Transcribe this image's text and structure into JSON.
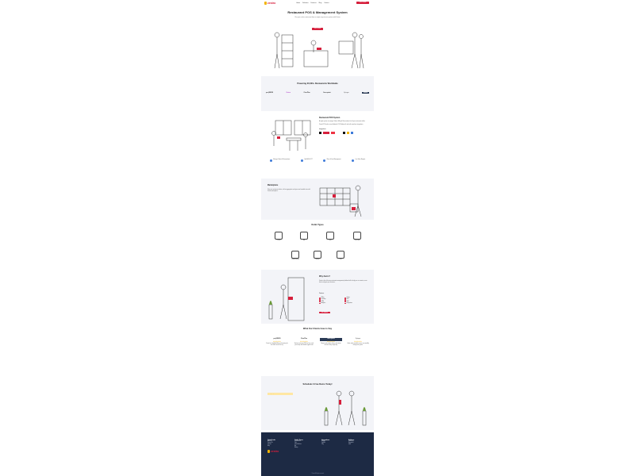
{
  "brand": {
    "name": "zestro"
  },
  "header": {
    "nav": [
      "Home",
      "Solutions",
      "Features",
      "Blog",
      "Contact",
      "Blog"
    ],
    "cta": "Get a Demo"
  },
  "hero": {
    "title": "Restaurant POS & Management System",
    "subtitle": "Run your entire restaurant from a single easy-to-use system with Zestro",
    "cta": "Get a Demo"
  },
  "partners": {
    "title": "Powering 20,000+ Restaurants Worldwide",
    "logos": [
      "pos|NEWS",
      "Zestro",
      "ClearPlan",
      "Greenpoint",
      "flyingm",
      "brand"
    ]
  },
  "pos_section": {
    "title": "Restaurant POS System",
    "p1": "A single system to manage Orders, Billing & Reservations for all your restaurant outlets.",
    "p2": "Zestro POS works across Android, iOS, Windows & web with seamless integrations.",
    "integrations_label": "Integrations",
    "features": [
      "Manage Orders & Reservations",
      "Split Bill & KOT",
      "Menu & Item Management",
      "Live Sales Reports"
    ],
    "cta": "Learn More"
  },
  "marketplace": {
    "title": "Marketplace",
    "text": "Take your restaurant online, sell on aggregators and your own branded store with Zestro marketplace."
  },
  "outlet_types": {
    "title": "Outlet Types",
    "items": [
      "Casual",
      "Bar",
      "QSR",
      "Fine Dine",
      "Cloud Kitchen",
      "Bakery",
      "Cafe"
    ]
  },
  "why": {
    "title": "Why Zestro?",
    "text": "Zestro is the all-in-one restaurant management platform built to help you run smarter, serve faster and grow your business.",
    "features_label": "Features",
    "list_left": [
      "Billing",
      "Inventory",
      "CRM",
      "Analytics"
    ],
    "list_right": [
      "Orders",
      "KDS",
      "Staff",
      "Integrations"
    ],
    "cta": "Get Started"
  },
  "reviews": {
    "title": "What Our Clients have to Say",
    "items": [
      {
        "logo": "pos|NEWS",
        "stars": "★★★★★",
        "text": "Zestro has simplified billing and inventory for our outlets across the city."
      },
      {
        "logo": "ClearPlan",
        "stars": "★★★★★",
        "text": "The best restaurant POS we have used. Quick setup and reliable support team."
      },
      {
        "logo": "Greenpoint",
        "stars": "★★★★★",
        "text": "Reports and analytics help us take better decisions every single day."
      },
      {
        "logo": "flyingm",
        "stars": "★★★★★",
        "text": "Online orders and table service run smoothly through one system."
      }
    ]
  },
  "schedule": {
    "title": "Schedule A Free Demo Today!",
    "input_placeholder": "Enter your phone number"
  },
  "footer": {
    "columns": [
      {
        "heading": "Quick Links",
        "items": [
          "About Us",
          "Contact Us",
          "Careers",
          "Blog"
        ]
      },
      {
        "heading": "Outlet Types",
        "items": [
          "Restaurant",
          "Cafe",
          "Cloud Kitchen",
          "Bar",
          "Bakery"
        ]
      },
      {
        "heading": "Integrations",
        "items": [
          "Swiggy",
          "Zomato",
          "Tally"
        ]
      },
      {
        "heading": "Address",
        "items": [
          "Zestro HQ",
          "Bengaluru",
          "India"
        ]
      }
    ],
    "copyright": "© Zestro. All rights reserved."
  },
  "colors": {
    "primary": "#d61f3c",
    "accent": "#f2b300",
    "footer": "#1d2a44",
    "section_bg": "#f3f4f8"
  }
}
